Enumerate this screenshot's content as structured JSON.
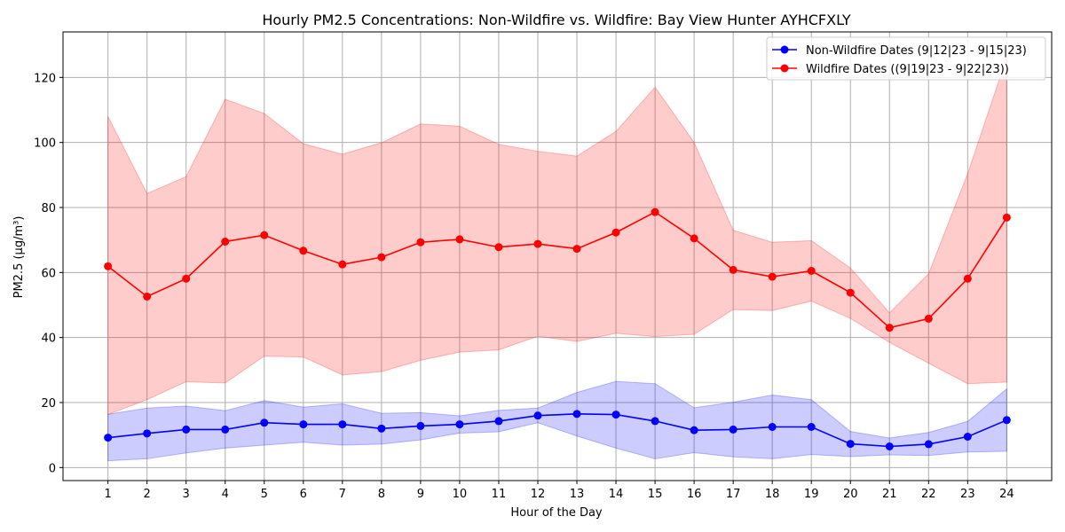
{
  "chart_data": {
    "type": "line",
    "title": "Hourly PM2.5 Concentrations: Non-Wildfire vs. Wildfire: Bay View Hunter AYHCFXLY",
    "xlabel": "Hour of the Day",
    "ylabel": "PM2.5 (µg/m³)",
    "x": [
      1,
      2,
      3,
      4,
      5,
      6,
      7,
      8,
      9,
      10,
      11,
      12,
      13,
      14,
      15,
      16,
      17,
      18,
      19,
      20,
      21,
      22,
      23,
      24
    ],
    "xlim": [
      -0.15,
      25.15
    ],
    "ylim": [
      -4,
      134
    ],
    "yticks": [
      0,
      20,
      40,
      60,
      80,
      100,
      120
    ],
    "grid": true,
    "legend_position": "top-right",
    "series": [
      {
        "name": "Non-Wildfire Dates (9|12|23 - 9|15|23)",
        "color": "#0000ff",
        "band_color": "#0000ff",
        "values": [
          9.2,
          10.5,
          11.7,
          11.7,
          13.8,
          13.3,
          13.3,
          12.0,
          12.8,
          13.3,
          14.3,
          16.0,
          16.5,
          16.3,
          14.3,
          11.5,
          11.7,
          12.5,
          12.5,
          7.3,
          6.5,
          7.2,
          9.5,
          14.6
        ],
        "lower": [
          2.1,
          2.7,
          4.5,
          6.0,
          6.9,
          7.8,
          6.9,
          7.2,
          8.5,
          10.6,
          11.0,
          13.8,
          9.7,
          6.0,
          2.7,
          4.6,
          3.3,
          2.7,
          4.0,
          3.4,
          3.9,
          3.7,
          4.8,
          5.0
        ],
        "upper": [
          16.4,
          18.3,
          18.9,
          17.5,
          20.6,
          18.6,
          19.6,
          16.7,
          16.9,
          15.9,
          17.6,
          18.3,
          23.1,
          26.5,
          25.8,
          18.4,
          20.1,
          22.3,
          20.9,
          11.1,
          9.1,
          10.8,
          14.2,
          24.2
        ]
      },
      {
        "name": "Wildfire Dates ((9|19|23 - 9|22|23))",
        "color": "#ff0000",
        "band_color": "#ff0000",
        "values": [
          61.9,
          52.6,
          58.1,
          69.5,
          71.5,
          66.7,
          62.5,
          64.7,
          69.3,
          70.2,
          67.8,
          68.8,
          67.3,
          72.3,
          78.6,
          70.5,
          60.8,
          58.7,
          60.5,
          53.8,
          43.0,
          45.8,
          58.1,
          76.9
        ],
        "lower": [
          16.3,
          20.9,
          26.4,
          26.0,
          34.3,
          34.0,
          28.5,
          29.5,
          33.0,
          35.5,
          36.2,
          40.4,
          38.8,
          41.3,
          40.3,
          41.0,
          48.6,
          48.3,
          51.2,
          45.9,
          38.5,
          32.1,
          25.8,
          26.3
        ],
        "upper": [
          108.0,
          84.3,
          89.5,
          113.3,
          108.9,
          99.6,
          96.4,
          99.9,
          105.7,
          105.0,
          99.4,
          97.3,
          95.8,
          103.4,
          117.0,
          100.0,
          73.0,
          69.3,
          69.8,
          61.4,
          47.6,
          59.6,
          90.4,
          126.2
        ]
      }
    ]
  }
}
